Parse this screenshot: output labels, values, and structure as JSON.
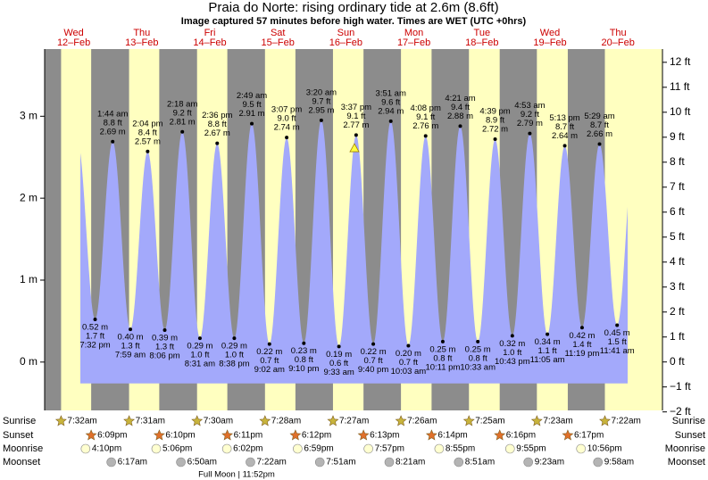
{
  "title": "Praia do Norte: rising  ordinary tide at 2.6m (8.6ft)",
  "subtitle": "Image captured 57 minutes before high water. Times are WET (UTC +0hrs)",
  "chart_data": {
    "type": "tide",
    "ylim": [
      -0.59,
      3.82
    ],
    "yticks": [
      {
        "value": 0,
        "label": "0 m"
      },
      {
        "value": 1,
        "label": "1 m"
      },
      {
        "value": 2,
        "label": "2 m"
      },
      {
        "value": 3,
        "label": "3 m"
      }
    ],
    "y2lim": [
      -1.94,
      12.53
    ],
    "y2ticks": [
      {
        "value": -2,
        "label": "−2 ft"
      },
      {
        "value": -1,
        "label": "−1 ft"
      },
      {
        "value": 0,
        "label": "0 ft"
      },
      {
        "value": 1,
        "label": "1 ft"
      },
      {
        "value": 2,
        "label": "2 ft"
      },
      {
        "value": 3,
        "label": "3 ft"
      },
      {
        "value": 4,
        "label": "4 ft"
      },
      {
        "value": 5,
        "label": "5 ft"
      },
      {
        "value": 6,
        "label": "6 ft"
      },
      {
        "value": 7,
        "label": "7 ft"
      },
      {
        "value": 8,
        "label": "8 ft"
      },
      {
        "value": 9,
        "label": "9 ft"
      },
      {
        "value": 10,
        "label": "10 ft"
      },
      {
        "value": 11,
        "label": "11 ft"
      },
      {
        "value": 12,
        "label": "12 ft"
      }
    ],
    "current_height_m": 2.6,
    "colors": {
      "night": "#8c8c8c",
      "day": "#ffffc0",
      "water": "#a3a9fb",
      "sunrise": "#c8b43c",
      "sunset": "#e0702a",
      "moonrise": "#ffffd0",
      "moonset": "#b4b4b4"
    },
    "row_labels": {
      "sunrise": "Sunrise",
      "sunset": "Sunset",
      "moonrise": "Moonrise",
      "moonset": "Moonset"
    },
    "moon_phase": "Full Moon | 11:52pm",
    "days": [
      {
        "weekday": "Wed",
        "date": "12–Feb",
        "sunrise": "7:32am",
        "sunset": "6:09pm",
        "moonrise": "4:10pm",
        "moonset": null,
        "tides": [
          {
            "time": "7:32 pm",
            "m": 0.52,
            "m_label": "0.52 m",
            "ft_label": "1.7 ft",
            "kind": "low"
          }
        ]
      },
      {
        "weekday": "Thu",
        "date": "13–Feb",
        "sunrise": "7:31am",
        "sunset": "6:10pm",
        "moonrise": "5:06pm",
        "moonset": "6:17am",
        "tides": [
          {
            "time": "1:44 am",
            "m": 2.69,
            "m_label": "2.69 m",
            "ft_label": "8.8 ft",
            "kind": "high"
          },
          {
            "time": "7:59 am",
            "m": 0.4,
            "m_label": "0.40 m",
            "ft_label": "1.3 ft",
            "kind": "low"
          },
          {
            "time": "2:04 pm",
            "m": 2.57,
            "m_label": "2.57 m",
            "ft_label": "8.4 ft",
            "kind": "high"
          },
          {
            "time": "8:06 pm",
            "m": 0.39,
            "m_label": "0.39 m",
            "ft_label": "1.3 ft",
            "kind": "low"
          }
        ]
      },
      {
        "weekday": "Fri",
        "date": "14–Feb",
        "sunrise": "7:30am",
        "sunset": "6:11pm",
        "moonrise": "6:02pm",
        "moonset": "6:50am",
        "tides": [
          {
            "time": "2:18 am",
            "m": 2.81,
            "m_label": "2.81 m",
            "ft_label": "9.2 ft",
            "kind": "high"
          },
          {
            "time": "8:31 am",
            "m": 0.29,
            "m_label": "0.29 m",
            "ft_label": "1.0 ft",
            "kind": "low"
          },
          {
            "time": "2:36 pm",
            "m": 2.67,
            "m_label": "2.67 m",
            "ft_label": "8.8 ft",
            "kind": "high"
          },
          {
            "time": "8:38 pm",
            "m": 0.29,
            "m_label": "0.29 m",
            "ft_label": "1.0 ft",
            "kind": "low"
          }
        ]
      },
      {
        "weekday": "Sat",
        "date": "15–Feb",
        "sunrise": "7:28am",
        "sunset": "6:12pm",
        "moonrise": "6:59pm",
        "moonset": "7:22am",
        "tides": [
          {
            "time": "2:49 am",
            "m": 2.91,
            "m_label": "2.91 m",
            "ft_label": "9.5 ft",
            "kind": "high"
          },
          {
            "time": "9:02 am",
            "m": 0.22,
            "m_label": "0.22 m",
            "ft_label": "0.7 ft",
            "kind": "low"
          },
          {
            "time": "3:07 pm",
            "m": 2.74,
            "m_label": "2.74 m",
            "ft_label": "9.0 ft",
            "kind": "high"
          },
          {
            "time": "9:10 pm",
            "m": 0.23,
            "m_label": "0.23 m",
            "ft_label": "0.8 ft",
            "kind": "low"
          }
        ]
      },
      {
        "weekday": "Sun",
        "date": "16–Feb",
        "sunrise": "7:27am",
        "sunset": "6:13pm",
        "moonrise": "7:57pm",
        "moonset": "7:51am",
        "tides": [
          {
            "time": "3:20 am",
            "m": 2.95,
            "m_label": "2.95 m",
            "ft_label": "9.7 ft",
            "kind": "high"
          },
          {
            "time": "9:33 am",
            "m": 0.19,
            "m_label": "0.19 m",
            "ft_label": "0.6 ft",
            "kind": "low"
          },
          {
            "time": "3:37 pm",
            "m": 2.77,
            "m_label": "2.77 m",
            "ft_label": "9.1 ft",
            "kind": "high"
          },
          {
            "time": "9:40 pm",
            "m": 0.22,
            "m_label": "0.22 m",
            "ft_label": "0.7 ft",
            "kind": "low"
          }
        ]
      },
      {
        "weekday": "Mon",
        "date": "17–Feb",
        "sunrise": "7:26am",
        "sunset": "6:14pm",
        "moonrise": "8:55pm",
        "moonset": "8:21am",
        "tides": [
          {
            "time": "3:51 am",
            "m": 2.94,
            "m_label": "2.94 m",
            "ft_label": "9.6 ft",
            "kind": "high"
          },
          {
            "time": "10:03 am",
            "m": 0.2,
            "m_label": "0.20 m",
            "ft_label": "0.7 ft",
            "kind": "low"
          },
          {
            "time": "4:08 pm",
            "m": 2.76,
            "m_label": "2.76 m",
            "ft_label": "9.1 ft",
            "kind": "high"
          },
          {
            "time": "10:11 pm",
            "m": 0.25,
            "m_label": "0.25 m",
            "ft_label": "0.8 ft",
            "kind": "low"
          }
        ]
      },
      {
        "weekday": "Tue",
        "date": "18–Feb",
        "sunrise": "7:25am",
        "sunset": "6:16pm",
        "moonrise": "9:55pm",
        "moonset": "8:51am",
        "tides": [
          {
            "time": "4:21 am",
            "m": 2.88,
            "m_label": "2.88 m",
            "ft_label": "9.4 ft",
            "kind": "high"
          },
          {
            "time": "10:33 am",
            "m": 0.25,
            "m_label": "0.25 m",
            "ft_label": "0.8 ft",
            "kind": "low"
          },
          {
            "time": "4:39 pm",
            "m": 2.72,
            "m_label": "2.72 m",
            "ft_label": "8.9 ft",
            "kind": "high"
          },
          {
            "time": "10:43 pm",
            "m": 0.32,
            "m_label": "0.32 m",
            "ft_label": "1.0 ft",
            "kind": "low"
          }
        ]
      },
      {
        "weekday": "Wed",
        "date": "19–Feb",
        "sunrise": "7:23am",
        "sunset": "6:17pm",
        "moonrise": "10:56pm",
        "moonset": "9:23am",
        "tides": [
          {
            "time": "4:53 am",
            "m": 2.79,
            "m_label": "2.79 m",
            "ft_label": "9.2 ft",
            "kind": "high"
          },
          {
            "time": "11:05 am",
            "m": 0.34,
            "m_label": "0.34 m",
            "ft_label": "1.1 ft",
            "kind": "low"
          },
          {
            "time": "5:13 pm",
            "m": 2.64,
            "m_label": "2.64 m",
            "ft_label": "8.7 ft",
            "kind": "high"
          },
          {
            "time": "11:19 pm",
            "m": 0.42,
            "m_label": "0.42 m",
            "ft_label": "1.4 ft",
            "kind": "low"
          }
        ]
      },
      {
        "weekday": "Thu",
        "date": "20–Feb",
        "sunrise": "7:22am",
        "sunset": null,
        "moonrise": null,
        "moonset": "9:58am",
        "tides": [
          {
            "time": "5:29 am",
            "m": 2.66,
            "m_label": "2.66 m",
            "ft_label": "8.7 ft",
            "kind": "high"
          },
          {
            "time": "11:41 am",
            "m": 0.45,
            "m_label": "0.45 m",
            "ft_label": "1.5 ft",
            "kind": "low"
          }
        ]
      }
    ]
  }
}
